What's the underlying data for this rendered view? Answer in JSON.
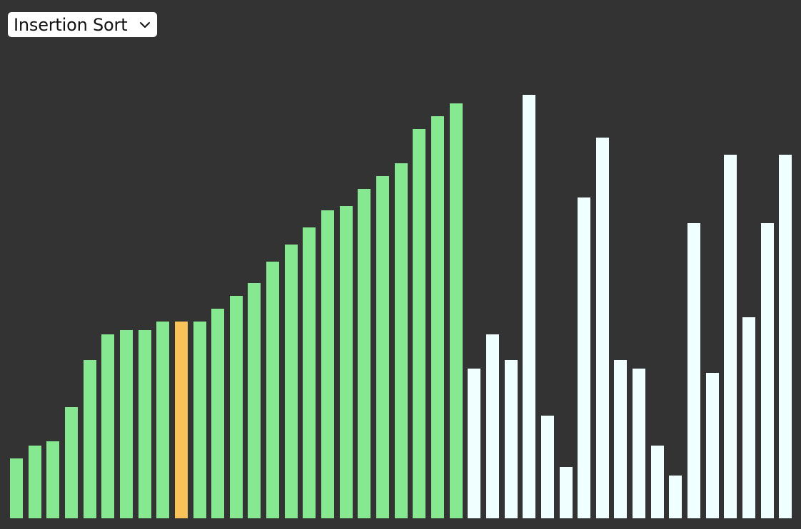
{
  "selector": {
    "selected_label": "Insertion Sort",
    "icon": "chevron-down-icon"
  },
  "visualizer": {
    "sorted_count": 25,
    "active_index": 9,
    "colors": {
      "background": "#333333",
      "sorted": "#86e992",
      "active": "#f9c35a",
      "unsorted": "#f0ffff"
    },
    "values": [
      84,
      102,
      108,
      156,
      222,
      258,
      264,
      264,
      276,
      276,
      276,
      294,
      312,
      330,
      360,
      384,
      408,
      432,
      438,
      462,
      480,
      498,
      546,
      564,
      582,
      210,
      258,
      222,
      594,
      144,
      72,
      450,
      534,
      222,
      210,
      102,
      60,
      414,
      204,
      510,
      282,
      414,
      510
    ],
    "max_value": 600
  }
}
